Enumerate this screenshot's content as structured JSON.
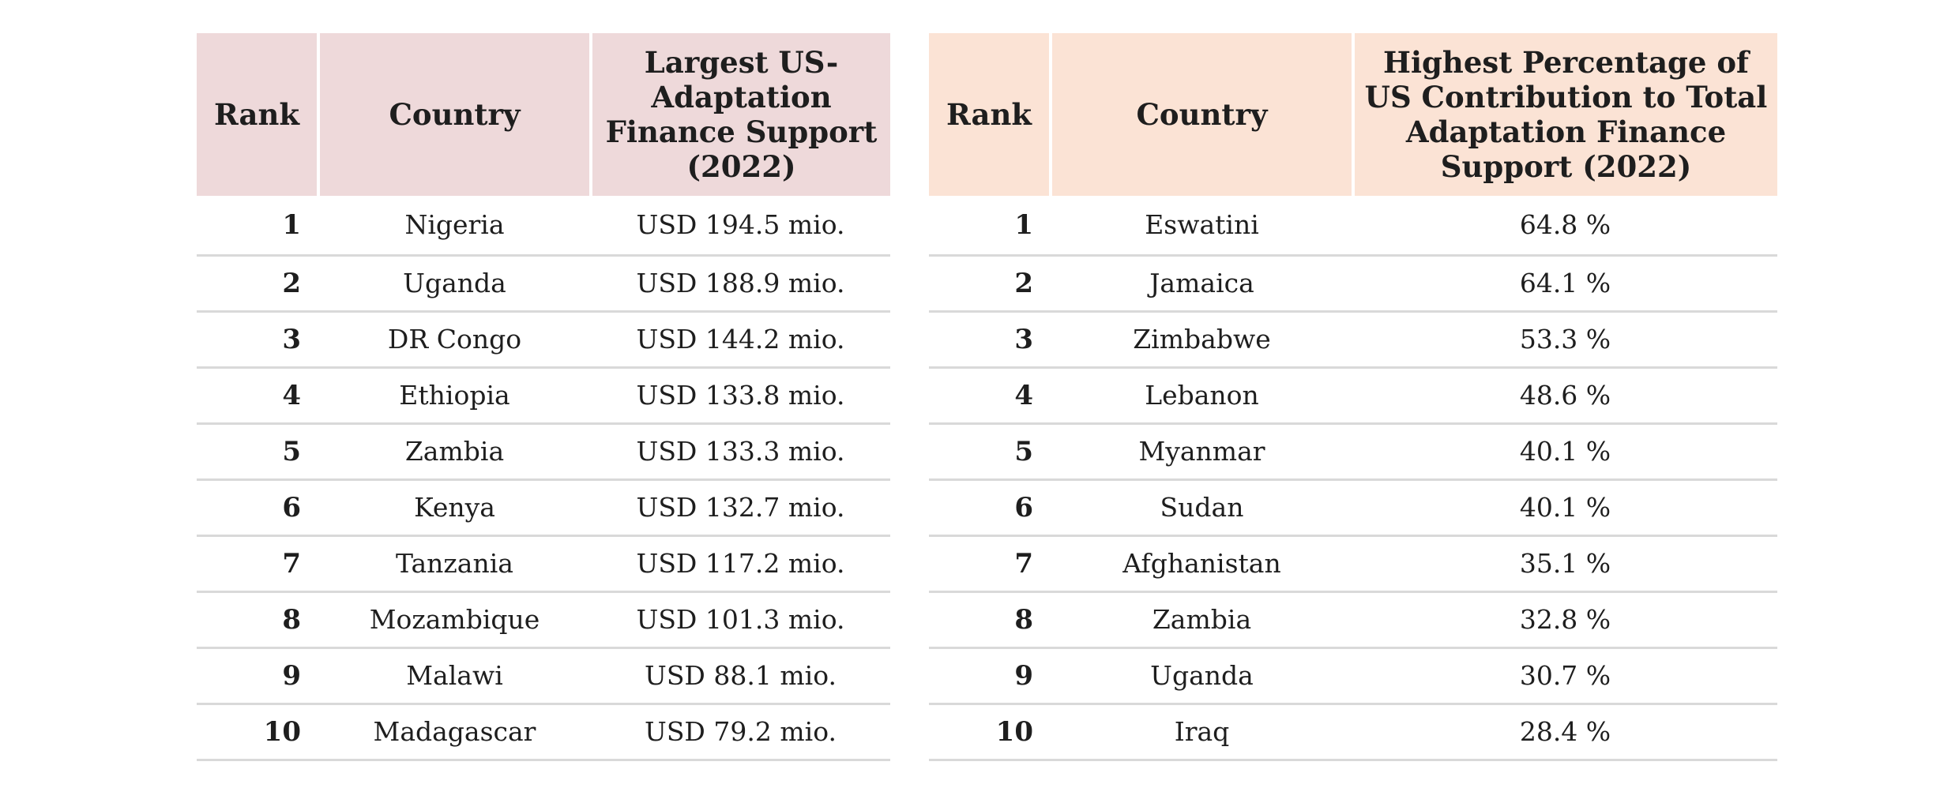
{
  "left_table": {
    "headers": {
      "rank": "Rank",
      "country": "Country",
      "value": "Largest US-Adaptation Finance Support (2022)"
    },
    "rows": [
      {
        "rank": "1",
        "country": "Nigeria",
        "value": "USD 194.5 mio."
      },
      {
        "rank": "2",
        "country": "Uganda",
        "value": "USD 188.9 mio."
      },
      {
        "rank": "3",
        "country": "DR Congo",
        "value": "USD 144.2 mio."
      },
      {
        "rank": "4",
        "country": "Ethiopia",
        "value": "USD 133.8 mio."
      },
      {
        "rank": "5",
        "country": "Zambia",
        "value": "USD 133.3 mio."
      },
      {
        "rank": "6",
        "country": "Kenya",
        "value": "USD 132.7 mio."
      },
      {
        "rank": "7",
        "country": "Tanzania",
        "value": "USD 117.2 mio."
      },
      {
        "rank": "8",
        "country": "Mozambique",
        "value": "USD 101.3 mio."
      },
      {
        "rank": "9",
        "country": "Malawi",
        "value": "USD 88.1 mio."
      },
      {
        "rank": "10",
        "country": "Madagascar",
        "value": "USD 79.2 mio."
      }
    ]
  },
  "right_table": {
    "headers": {
      "rank": "Rank",
      "country": "Country",
      "value": "Highest Percentage of US Contribution to Total Adaptation Finance Support (2022)"
    },
    "rows": [
      {
        "rank": "1",
        "country": "Eswatini",
        "value": "64.8 %"
      },
      {
        "rank": "2",
        "country": "Jamaica",
        "value": "64.1 %"
      },
      {
        "rank": "3",
        "country": "Zimbabwe",
        "value": "53.3 %"
      },
      {
        "rank": "4",
        "country": "Lebanon",
        "value": "48.6 %"
      },
      {
        "rank": "5",
        "country": "Myanmar",
        "value": "40.1 %"
      },
      {
        "rank": "6",
        "country": "Sudan",
        "value": "40.1 %"
      },
      {
        "rank": "7",
        "country": "Afghanistan",
        "value": "35.1 %"
      },
      {
        "rank": "8",
        "country": "Zambia",
        "value": "32.8 %"
      },
      {
        "rank": "9",
        "country": "Uganda",
        "value": "30.7 %"
      },
      {
        "rank": "10",
        "country": "Iraq",
        "value": "28.4 %"
      }
    ]
  },
  "colors": {
    "left_header_bg": "#eed9da",
    "right_header_bg": "#fbe3d5",
    "row_divider": "#d9d9d9",
    "text": "#1e1e1e"
  }
}
